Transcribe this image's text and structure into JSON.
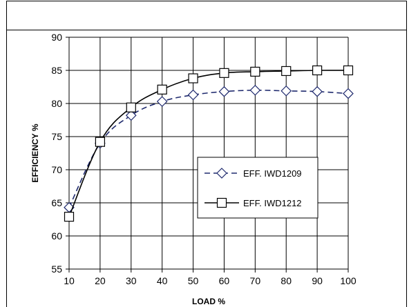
{
  "chart_data": {
    "type": "line",
    "title": "",
    "xlabel": "LOAD %",
    "ylabel": "EFFICIENCY %",
    "x": [
      10,
      20,
      30,
      40,
      50,
      60,
      70,
      80,
      90,
      100
    ],
    "xlim": [
      10,
      100
    ],
    "ylim": [
      55,
      90
    ],
    "xticks": [
      10,
      20,
      30,
      40,
      50,
      60,
      70,
      80,
      90,
      100
    ],
    "yticks": [
      55,
      60,
      65,
      70,
      75,
      80,
      85,
      90
    ],
    "grid": true,
    "legend_position": "center-right",
    "series": [
      {
        "name": "EFF. IWD1209",
        "values": [
          64.3,
          74.0,
          78.2,
          80.3,
          81.3,
          81.8,
          82.0,
          81.9,
          81.8,
          81.5
        ],
        "color": "#1f2a6e",
        "line_style": "dashed",
        "marker": "diamond"
      },
      {
        "name": "EFF. IWD1212",
        "values": [
          62.9,
          74.2,
          79.4,
          82.1,
          83.8,
          84.6,
          84.8,
          84.9,
          85.0,
          85.0
        ],
        "color": "#000000",
        "line_style": "solid",
        "marker": "square"
      }
    ]
  }
}
